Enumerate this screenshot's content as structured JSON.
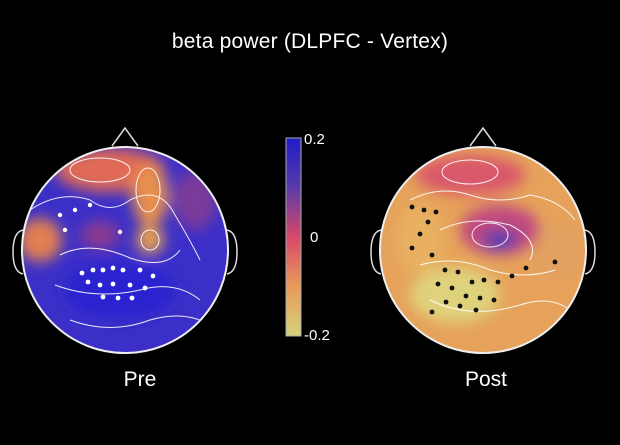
{
  "figure": {
    "title": "beta power (DLPFC - Vertex)",
    "conditions": [
      "Pre",
      "Post"
    ]
  },
  "colorbar": {
    "ticks": [
      "0.2",
      "0",
      "-0.2"
    ],
    "colors": {
      "high": "#2a1fd0",
      "mid": "#d9486a",
      "low": "#d6d27a"
    }
  }
}
